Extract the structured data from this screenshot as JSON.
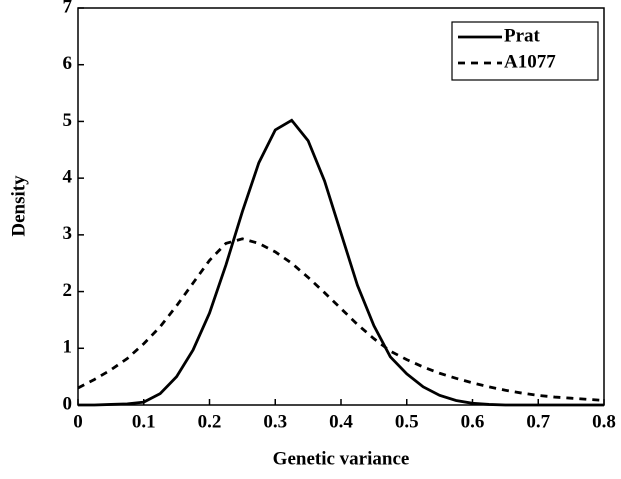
{
  "chart_data": {
    "type": "line",
    "x_label": "Genetic variance",
    "y_label": "Density",
    "x": [
      0,
      0.025,
      0.05,
      0.075,
      0.1,
      0.125,
      0.15,
      0.175,
      0.2,
      0.225,
      0.25,
      0.275,
      0.3,
      0.325,
      0.35,
      0.375,
      0.4,
      0.425,
      0.45,
      0.475,
      0.5,
      0.525,
      0.55,
      0.575,
      0.6,
      0.625,
      0.65,
      0.675,
      0.7,
      0.725,
      0.75,
      0.775,
      0.8
    ],
    "series": [
      {
        "name": "Prat",
        "color": "#000000",
        "style": "solid",
        "values": [
          0,
          0,
          0.01,
          0.02,
          0.05,
          0.2,
          0.5,
          0.97,
          1.62,
          2.47,
          3.41,
          4.27,
          4.85,
          5.02,
          4.66,
          3.95,
          3.03,
          2.11,
          1.4,
          0.85,
          0.55,
          0.32,
          0.17,
          0.08,
          0.03,
          0.01,
          0,
          0,
          0,
          0,
          0,
          0,
          0
        ]
      },
      {
        "name": "A1077",
        "color": "#000000",
        "style": "dashed",
        "values": [
          0.3,
          0.45,
          0.62,
          0.82,
          1.08,
          1.38,
          1.75,
          2.15,
          2.55,
          2.85,
          2.93,
          2.85,
          2.7,
          2.5,
          2.25,
          1.98,
          1.7,
          1.42,
          1.17,
          0.95,
          0.8,
          0.67,
          0.56,
          0.47,
          0.39,
          0.32,
          0.26,
          0.21,
          0.17,
          0.14,
          0.12,
          0.1,
          0.08
        ]
      }
    ],
    "xlim": [
      0,
      0.8
    ],
    "xticks": [
      0,
      0.1,
      0.2,
      0.3,
      0.4,
      0.5,
      0.6,
      0.7,
      0.8
    ],
    "ylim": [
      0,
      7
    ],
    "yticks": [
      0,
      1,
      2,
      3,
      4,
      5,
      6,
      7
    ],
    "legend": "upper right"
  }
}
